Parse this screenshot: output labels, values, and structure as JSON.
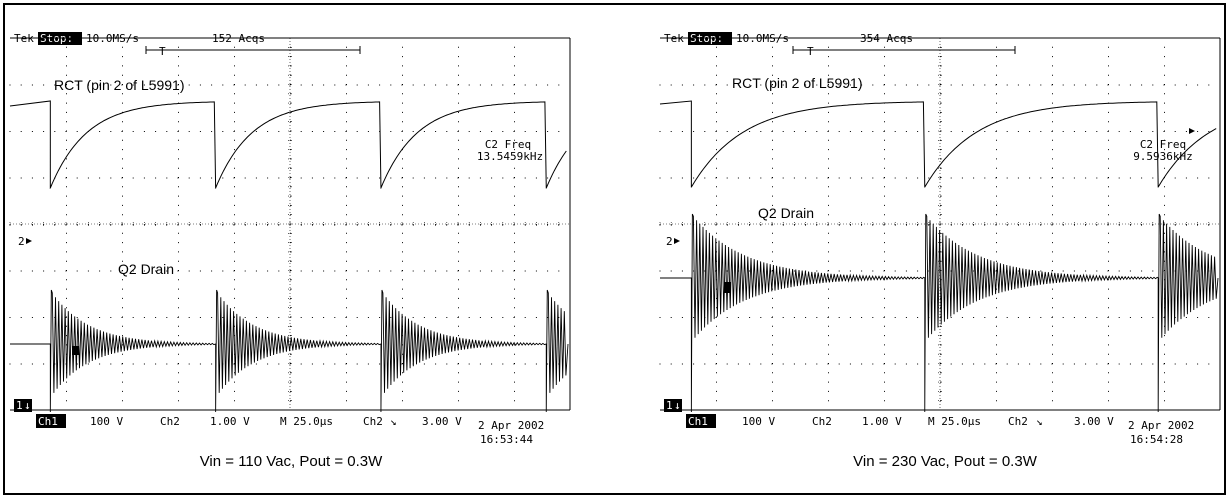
{
  "chart_data": [
    {
      "type": "line",
      "header": {
        "brand": "Tek",
        "state": "Stop:",
        "rate": "10.0MS/s",
        "acqs": "152 Acqs",
        "trigger_mark": "T"
      },
      "channel_markers": {
        "ch2": "2",
        "ch1": "1"
      },
      "traces": [
        {
          "name": "RCT (pin 2 of L5991)",
          "kind": "sawtooth"
        },
        {
          "name": "Q2 Drain",
          "kind": "ringing"
        }
      ],
      "measurement": {
        "label": "C2 Freq",
        "value": "13.5459kHz"
      },
      "footer": {
        "ch1_tag": "Ch1",
        "ch1_scale": "100 V",
        "ch2_tag": "Ch2",
        "ch2_scale": "1.00 V",
        "timebase": "M 25.0µs",
        "trigger_src": "Ch2",
        "trigger_level": "3.00 V"
      },
      "date": "2 Apr 2002",
      "time": "16:53:44",
      "caption": "Vin = 110 Vac, Pout = 0.3W",
      "period_us": 73.8,
      "time_range_us": [
        0,
        250
      ],
      "first_edge_us": 18
    },
    {
      "type": "line",
      "header": {
        "brand": "Tek",
        "state": "Stop:",
        "rate": "10.0MS/s",
        "acqs": "354 Acqs",
        "trigger_mark": "T"
      },
      "channel_markers": {
        "ch2": "2",
        "ch1": "1"
      },
      "traces": [
        {
          "name": "RCT (pin 2 of L5991)",
          "kind": "sawtooth"
        },
        {
          "name": "Q2 Drain",
          "kind": "ringing"
        }
      ],
      "measurement": {
        "label": "C2 Freq",
        "value": "9.5936kHz"
      },
      "footer": {
        "ch1_tag": "Ch1",
        "ch1_scale": "100 V",
        "ch2_tag": "Ch2",
        "ch2_scale": "1.00 V",
        "timebase": "M 25.0µs",
        "trigger_src": "Ch2",
        "trigger_level": "3.00 V"
      },
      "date": "2 Apr 2002",
      "time": "16:54:28",
      "caption": "Vin = 230 Vac, Pout = 0.3W",
      "period_us": 104.2,
      "time_range_us": [
        0,
        250
      ],
      "first_edge_us": 14
    }
  ]
}
